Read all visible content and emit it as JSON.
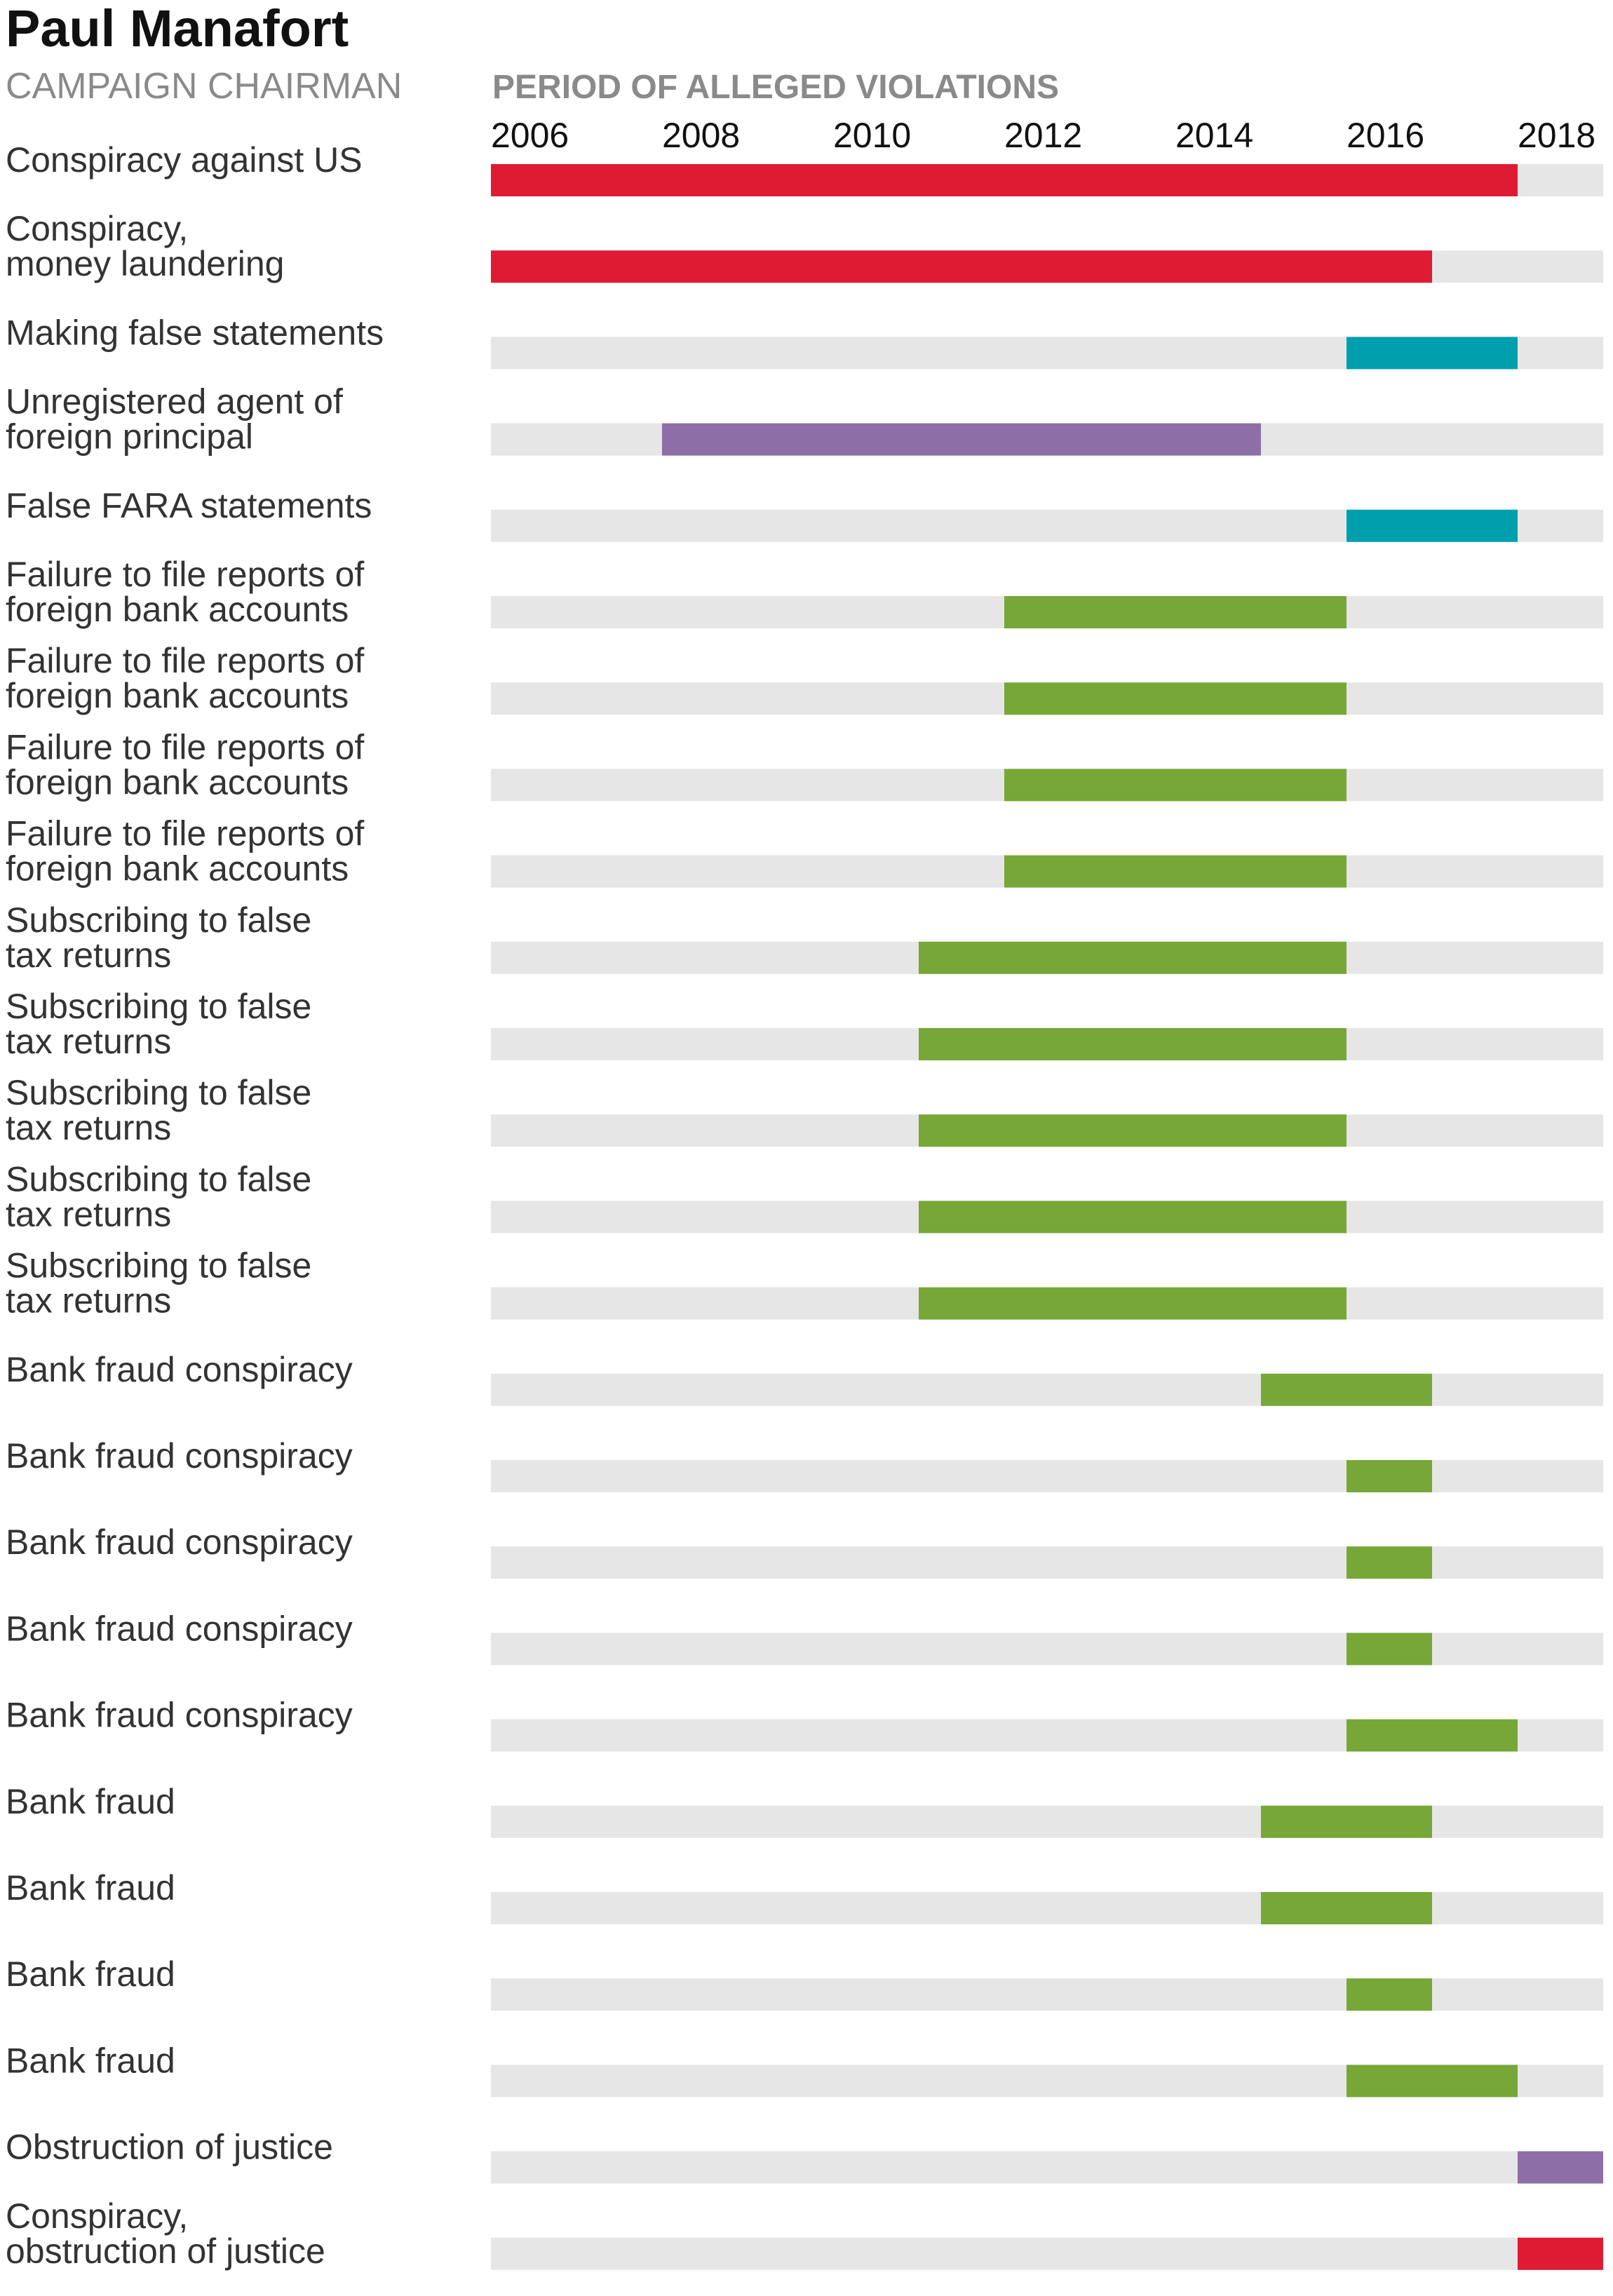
{
  "header": {
    "title": "Paul Manafort",
    "subtitle": "CAMPAIGN CHAIRMAN",
    "period_label": "PERIOD OF ALLEGED VIOLATIONS"
  },
  "colors": {
    "track": "#e6e6e6",
    "red": "#df1a33",
    "teal": "#009fad",
    "purple": "#8e6ea7",
    "green": "#76a737"
  },
  "chart_data": {
    "type": "timeline",
    "x_ticks": [
      "2006",
      "2008",
      "2010",
      "2012",
      "2014",
      "2016",
      "2018"
    ],
    "xlim": [
      2006,
      2019
    ],
    "rows": [
      {
        "label": "Conspiracy against US",
        "start": 2006,
        "end": 2018,
        "color": "red"
      },
      {
        "label": "Conspiracy,\nmoney laundering",
        "start": 2006,
        "end": 2017,
        "color": "red"
      },
      {
        "label": "Making false statements",
        "start": 2016,
        "end": 2018,
        "color": "teal"
      },
      {
        "label": "Unregistered agent of\nforeign principal",
        "start": 2008,
        "end": 2015,
        "color": "purple"
      },
      {
        "label": "False FARA statements",
        "start": 2016,
        "end": 2018,
        "color": "teal"
      },
      {
        "label": "Failure to file reports of\nforeign bank accounts",
        "start": 2012,
        "end": 2016,
        "color": "green"
      },
      {
        "label": "Failure to file reports of\nforeign bank accounts",
        "start": 2012,
        "end": 2016,
        "color": "green"
      },
      {
        "label": "Failure to file reports of\nforeign bank accounts",
        "start": 2012,
        "end": 2016,
        "color": "green"
      },
      {
        "label": "Failure to file reports of\nforeign bank accounts",
        "start": 2012,
        "end": 2016,
        "color": "green"
      },
      {
        "label": "Subscribing to false\ntax returns",
        "start": 2011,
        "end": 2016,
        "color": "green"
      },
      {
        "label": "Subscribing to false\ntax returns",
        "start": 2011,
        "end": 2016,
        "color": "green"
      },
      {
        "label": "Subscribing to false\ntax returns",
        "start": 2011,
        "end": 2016,
        "color": "green"
      },
      {
        "label": "Subscribing to false\ntax returns",
        "start": 2011,
        "end": 2016,
        "color": "green"
      },
      {
        "label": "Subscribing to false\ntax returns",
        "start": 2011,
        "end": 2016,
        "color": "green"
      },
      {
        "label": "Bank fraud conspiracy",
        "start": 2015,
        "end": 2017,
        "color": "green"
      },
      {
        "label": "Bank fraud conspiracy",
        "start": 2016,
        "end": 2017,
        "color": "green"
      },
      {
        "label": "Bank fraud conspiracy",
        "start": 2016,
        "end": 2017,
        "color": "green"
      },
      {
        "label": "Bank fraud conspiracy",
        "start": 2016,
        "end": 2017,
        "color": "green"
      },
      {
        "label": "Bank fraud conspiracy",
        "start": 2016,
        "end": 2018,
        "color": "green"
      },
      {
        "label": "Bank fraud",
        "start": 2015,
        "end": 2017,
        "color": "green"
      },
      {
        "label": "Bank fraud",
        "start": 2015,
        "end": 2017,
        "color": "green"
      },
      {
        "label": "Bank fraud",
        "start": 2016,
        "end": 2017,
        "color": "green"
      },
      {
        "label": "Bank fraud",
        "start": 2016,
        "end": 2018,
        "color": "green"
      },
      {
        "label": "Obstruction of justice",
        "start": 2018,
        "end": 2019,
        "color": "purple"
      },
      {
        "label": "Conspiracy,\nobstruction of justice",
        "start": 2018,
        "end": 2019,
        "color": "red"
      }
    ]
  }
}
